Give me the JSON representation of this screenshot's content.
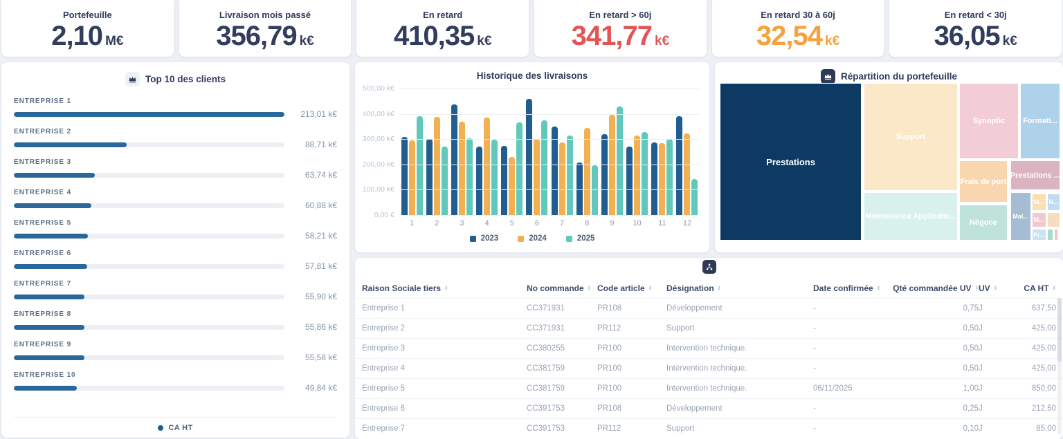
{
  "kpis": [
    {
      "label": "Portefeuille",
      "value": "2,10",
      "unit": "M€",
      "color": "#323d5c"
    },
    {
      "label": "Livraison mois passé",
      "value": "356,79",
      "unit": "k€",
      "color": "#323d5c"
    },
    {
      "label": "En retard",
      "value": "410,35",
      "unit": "k€",
      "color": "#323d5c"
    },
    {
      "label": "En retard > 60j",
      "value": "341,77",
      "unit": "k€",
      "color": "#e35454"
    },
    {
      "label": "En retard 30 à 60j",
      "value": "32,54",
      "unit": "k€",
      "color": "#f6a13c"
    },
    {
      "label": "En retard < 30j",
      "value": "36,05",
      "unit": "k€",
      "color": "#323d5c"
    }
  ],
  "chart_data": [
    {
      "type": "bar",
      "orientation": "horizontal",
      "title": "Top 10 des clients",
      "categories": [
        "ENTREPRISE 1",
        "ENTREPRISE 2",
        "ENTREPRISE 3",
        "ENTREPRISE 4",
        "ENTREPRISE 5",
        "ENTREPRISE 6",
        "ENTREPRISE 7",
        "ENTREPRISE 8",
        "ENTREPRISE 9",
        "ENTREPRISE 10"
      ],
      "values": [
        213.01,
        88.71,
        63.74,
        60.88,
        58.21,
        57.81,
        55.9,
        55.86,
        55.58,
        49.84
      ],
      "value_labels": [
        "213,01 k€",
        "88,71 k€",
        "63,74 k€",
        "60,88 k€",
        "58,21 k€",
        "57,81 k€",
        "55,90 k€",
        "55,86 k€",
        "55,58 k€",
        "49,84 k€"
      ],
      "xlim": [
        0,
        213.01
      ],
      "legend": [
        "CA HT"
      ],
      "bar_color": "#2a689c"
    },
    {
      "type": "bar",
      "title": "Historique des livraisons",
      "categories": [
        "1",
        "2",
        "3",
        "4",
        "5",
        "6",
        "7",
        "8",
        "9",
        "10",
        "11",
        "12"
      ],
      "series": [
        {
          "name": "2023",
          "color": "#215e8f",
          "values": [
            308,
            301,
            437,
            270,
            274,
            458,
            350,
            209,
            319,
            271,
            288,
            390
          ]
        },
        {
          "name": "2024",
          "color": "#f2b052",
          "values": [
            294,
            389,
            370,
            386,
            229,
            300,
            286,
            343,
            395,
            313,
            284,
            322
          ]
        },
        {
          "name": "2025",
          "color": "#62c8bb",
          "values": [
            390,
            271,
            304,
            298,
            367,
            373,
            313,
            196,
            429,
            329,
            301,
            143
          ]
        }
      ],
      "ylim": [
        0,
        500
      ],
      "yticks": [
        "500,00 k€",
        "400,00 k€",
        "300,00 k€",
        "200,00 k€",
        "100,00 k€",
        "0,00 €"
      ],
      "legend_position": "bottom",
      "grid": true
    },
    {
      "type": "treemap",
      "title": "Répartition du portefeuille",
      "tiles": [
        {
          "label": "Prestations",
          "color": "#0d3a63",
          "x": 0,
          "y": 0,
          "w": 41.7,
          "h": 100
        },
        {
          "label": "Support",
          "color": "#fbe8c9",
          "x": 42.3,
          "y": 0,
          "w": 27.6,
          "h": 68.3
        },
        {
          "label": "Maintenance Applicatio...",
          "color": "#d8f1ec",
          "x": 42.3,
          "y": 69.1,
          "w": 27.6,
          "h": 30.9
        },
        {
          "label": "Synoptic",
          "color": "#f3cdd5",
          "x": 70.3,
          "y": 0,
          "w": 17.5,
          "h": 48.3
        },
        {
          "label": "Formati...",
          "color": "#aed2e9",
          "x": 88.2,
          "y": 0,
          "w": 11.8,
          "h": 48.3
        },
        {
          "label": "Frais de port",
          "color": "#f7d6b0",
          "x": 70.3,
          "y": 49.1,
          "w": 14.2,
          "h": 27
        },
        {
          "label": "Prestations ...",
          "color": "#dcb4c1",
          "x": 85.3,
          "y": 49.1,
          "w": 14.7,
          "h": 19.1
        },
        {
          "label": "Négoce",
          "color": "#bfe2d9",
          "x": 70.3,
          "y": 77,
          "w": 14.2,
          "h": 23
        },
        {
          "label": "Mal...",
          "color": "#a6bcd2",
          "x": 85.3,
          "y": 69.1,
          "w": 6.1,
          "h": 30.9
        },
        {
          "label": "M...",
          "color": "#fbdfb2",
          "x": 91.6,
          "y": 70,
          "w": 4.3,
          "h": 11.3
        },
        {
          "label": "N...",
          "color": "#bfdcf2",
          "x": 96.1,
          "y": 70,
          "w": 3.9,
          "h": 11.3
        },
        {
          "label": "M...",
          "color": "#f4c8d0",
          "x": 91.6,
          "y": 82.2,
          "w": 4.3,
          "h": 9.6
        },
        {
          "label": "",
          "color": "#f8dcc0",
          "x": 96.1,
          "y": 82.2,
          "w": 3.9,
          "h": 9.6
        },
        {
          "label": "Pr...",
          "color": "#c9e2f4",
          "x": 91.6,
          "y": 92.6,
          "w": 4.3,
          "h": 7.4
        },
        {
          "label": "",
          "color": "#a8dacd",
          "x": 96.1,
          "y": 92.6,
          "w": 1.8,
          "h": 7.4
        },
        {
          "label": "",
          "color": "#edc6cd",
          "x": 98.2,
          "y": 92.6,
          "w": 1.2,
          "h": 7.4
        },
        {
          "label": "",
          "color": "#c5daf0",
          "x": 99.6,
          "y": 92.6,
          "w": 0.4,
          "h": 7.4
        }
      ]
    }
  ],
  "table": {
    "columns": [
      {
        "label": "Raison Sociale tiers",
        "align": "left"
      },
      {
        "label": "No commande",
        "align": "left"
      },
      {
        "label": "Code article",
        "align": "left"
      },
      {
        "label": "Désignation",
        "align": "left"
      },
      {
        "label": "Date confirmée",
        "align": "left"
      },
      {
        "label": "Qté commandée UV",
        "align": "right"
      },
      {
        "label": "UV",
        "align": "left"
      },
      {
        "label": "CA HT",
        "align": "right"
      }
    ],
    "rows": [
      [
        "Entreprise 1",
        "CC371931",
        "PR108",
        "Développement",
        "-",
        "0,75",
        "J",
        "637,50"
      ],
      [
        "Entreprise 2",
        "CC371931",
        "PR112",
        "Support",
        "-",
        "0,50",
        "J",
        "425,00"
      ],
      [
        "Entreprise 3",
        "CC380255",
        "PR100",
        "Intervention technique.",
        "-",
        "0,50",
        "J",
        "425,00"
      ],
      [
        "Entreprise 4",
        "CC381759",
        "PR100",
        "Intervention technique.",
        "-",
        "0,50",
        "J",
        "425,00"
      ],
      [
        "Entreprise 5",
        "CC381759",
        "PR100",
        "Intervention technique.",
        "06/11/2025",
        "1,00",
        "J",
        "850,00"
      ],
      [
        "Entreprise 6",
        "CC391753",
        "PR108",
        "Développement",
        "-",
        "0,25",
        "J",
        "212,50"
      ],
      [
        "Entreprise 7",
        "CC391753",
        "PR112",
        "Support",
        "-",
        "0,10",
        "J",
        "85,00"
      ]
    ]
  }
}
